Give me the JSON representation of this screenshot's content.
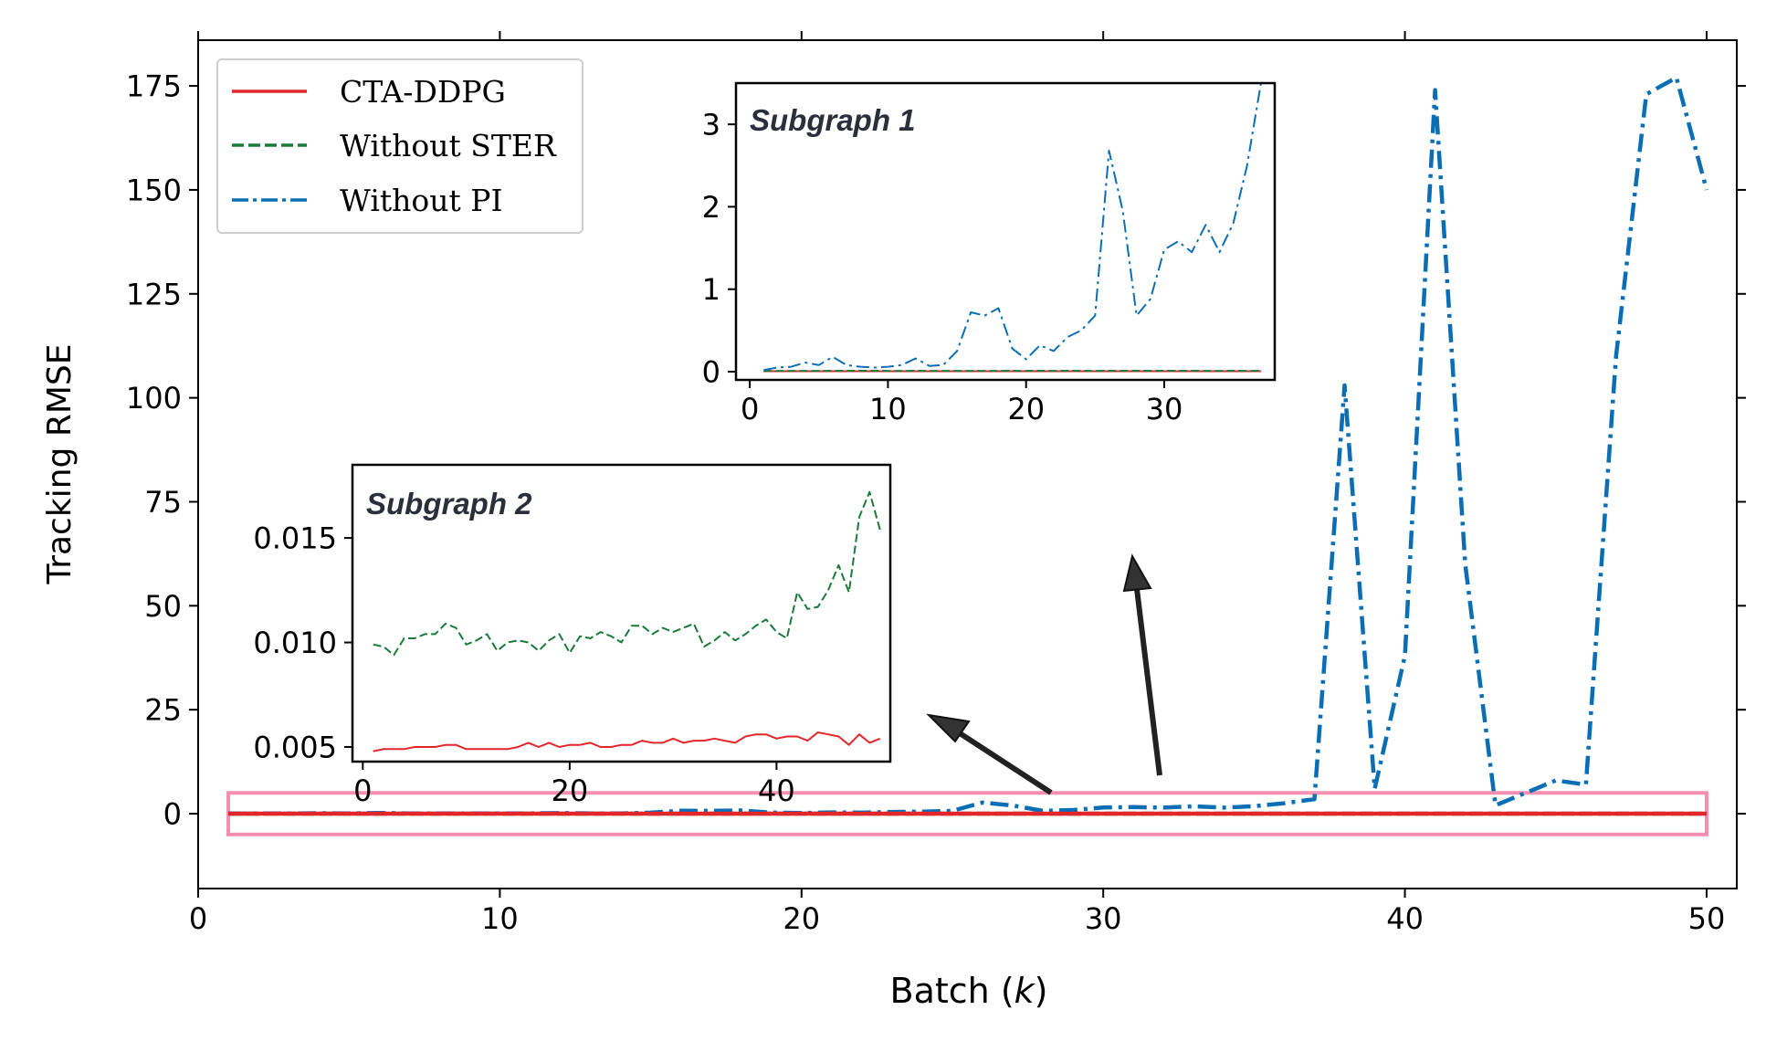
{
  "chart_data": [
    {
      "id": "main",
      "type": "line",
      "xlabel": "Batch",
      "xlabel_var": "k",
      "ylabel": "Tracking RMSE",
      "xlim": [
        0,
        51
      ],
      "ylim": [
        -18,
        186
      ],
      "xticks": [
        0,
        10,
        20,
        30,
        40,
        50
      ],
      "yticks": [
        0,
        25,
        50,
        75,
        100,
        125,
        150,
        175
      ],
      "legend": {
        "placement": "top-left",
        "entries": [
          {
            "label": "CTA-DDPG",
            "color": "#e3262a",
            "style": "solid"
          },
          {
            "label": "Without STER",
            "color": "#1a7a3a",
            "style": "dashed"
          },
          {
            "label": "Without PI",
            "color": "#0a6eb5",
            "style": "dashdot"
          }
        ]
      },
      "highlight": {
        "x": [
          1,
          50
        ],
        "y": [
          -5,
          5
        ],
        "color": "#f48fb1"
      },
      "series": [
        {
          "name": "CTA-DDPG",
          "color": "#e3262a",
          "style": "solid",
          "x": [
            1,
            2,
            3,
            4,
            5,
            6,
            7,
            8,
            9,
            10,
            11,
            12,
            13,
            14,
            15,
            16,
            17,
            18,
            19,
            20,
            21,
            22,
            23,
            24,
            25,
            26,
            27,
            28,
            29,
            30,
            31,
            32,
            33,
            34,
            35,
            36,
            37,
            38,
            39,
            40,
            41,
            42,
            43,
            44,
            45,
            46,
            47,
            48,
            49,
            50
          ],
          "values": [
            0.0048,
            0.0049,
            0.0049,
            0.0049,
            0.005,
            0.005,
            0.005,
            0.0051,
            0.0051,
            0.0049,
            0.0049,
            0.0049,
            0.0049,
            0.0049,
            0.005,
            0.0052,
            0.005,
            0.0052,
            0.005,
            0.0051,
            0.0051,
            0.0052,
            0.005,
            0.005,
            0.0051,
            0.0051,
            0.0053,
            0.0052,
            0.0052,
            0.0054,
            0.0052,
            0.0053,
            0.0053,
            0.0054,
            0.0053,
            0.0052,
            0.0055,
            0.0056,
            0.0056,
            0.0054,
            0.0055,
            0.0055,
            0.0053,
            0.0057,
            0.0056,
            0.0055,
            0.0051,
            0.0056,
            0.0052,
            0.0054
          ]
        },
        {
          "name": "Without STER",
          "color": "#1a7a3a",
          "style": "dashed",
          "x": [
            1,
            2,
            3,
            4,
            5,
            6,
            7,
            8,
            9,
            10,
            11,
            12,
            13,
            14,
            15,
            16,
            17,
            18,
            19,
            20,
            21,
            22,
            23,
            24,
            25,
            26,
            27,
            28,
            29,
            30,
            31,
            32,
            33,
            34,
            35,
            36,
            37,
            38,
            39,
            40,
            41,
            42,
            43,
            44,
            45,
            46,
            47,
            48,
            49,
            50
          ],
          "values": [
            0.0099,
            0.0098,
            0.0094,
            0.0102,
            0.0102,
            0.0104,
            0.0104,
            0.0109,
            0.0107,
            0.0099,
            0.0101,
            0.0104,
            0.0096,
            0.01,
            0.0101,
            0.01,
            0.0096,
            0.0101,
            0.0104,
            0.0095,
            0.0103,
            0.0102,
            0.0105,
            0.0103,
            0.01,
            0.0108,
            0.0108,
            0.0104,
            0.0107,
            0.0105,
            0.0107,
            0.0109,
            0.0098,
            0.0101,
            0.0105,
            0.0101,
            0.0104,
            0.0108,
            0.0111,
            0.0105,
            0.0102,
            0.0124,
            0.0116,
            0.0117,
            0.0125,
            0.0137,
            0.0124,
            0.016,
            0.0172,
            0.0154
          ]
        },
        {
          "name": "Without PI",
          "color": "#0a6eb5",
          "style": "dashdot",
          "x": [
            1,
            2,
            3,
            4,
            5,
            6,
            7,
            8,
            9,
            10,
            11,
            12,
            13,
            14,
            15,
            16,
            17,
            18,
            19,
            20,
            21,
            22,
            23,
            24,
            25,
            26,
            27,
            28,
            29,
            30,
            31,
            32,
            33,
            34,
            35,
            36,
            37,
            38,
            39,
            40,
            41,
            42,
            43,
            44,
            45,
            46,
            47,
            48,
            49,
            50
          ],
          "values": [
            0.02,
            0.05,
            0.06,
            0.11,
            0.08,
            0.18,
            0.08,
            0.06,
            0.05,
            0.06,
            0.08,
            0.16,
            0.07,
            0.08,
            0.25,
            0.72,
            0.68,
            0.77,
            0.28,
            0.15,
            0.32,
            0.25,
            0.42,
            0.5,
            0.68,
            2.68,
            1.95,
            0.68,
            0.88,
            1.48,
            1.58,
            1.45,
            1.78,
            1.45,
            1.8,
            2.5,
            3.5,
            103,
            6,
            38,
            174,
            60,
            2,
            5,
            8,
            7,
            110,
            173,
            177,
            150
          ]
        }
      ]
    },
    {
      "id": "inset1",
      "type": "line",
      "title": "Subgraph 1",
      "xlim": [
        -1,
        38
      ],
      "ylim": [
        -0.1,
        3.5
      ],
      "xticks": [
        0,
        10,
        20,
        30
      ],
      "yticks": [
        0,
        1,
        2,
        3
      ],
      "series_ref": [
        "CTA-DDPG",
        "Without STER",
        "Without PI"
      ],
      "n_points": 37
    },
    {
      "id": "inset2",
      "type": "line",
      "title": "Subgraph 2",
      "xlim": [
        -1,
        51
      ],
      "ylim": [
        0.0043,
        0.0185
      ],
      "xticks": [
        0,
        20,
        40
      ],
      "yticks": [
        "0.005",
        "0.010",
        "0.015"
      ],
      "ytick_values": [
        0.005,
        0.01,
        0.015
      ],
      "series_ref": [
        "CTA-DDPG",
        "Without STER"
      ],
      "n_points": 50
    }
  ]
}
